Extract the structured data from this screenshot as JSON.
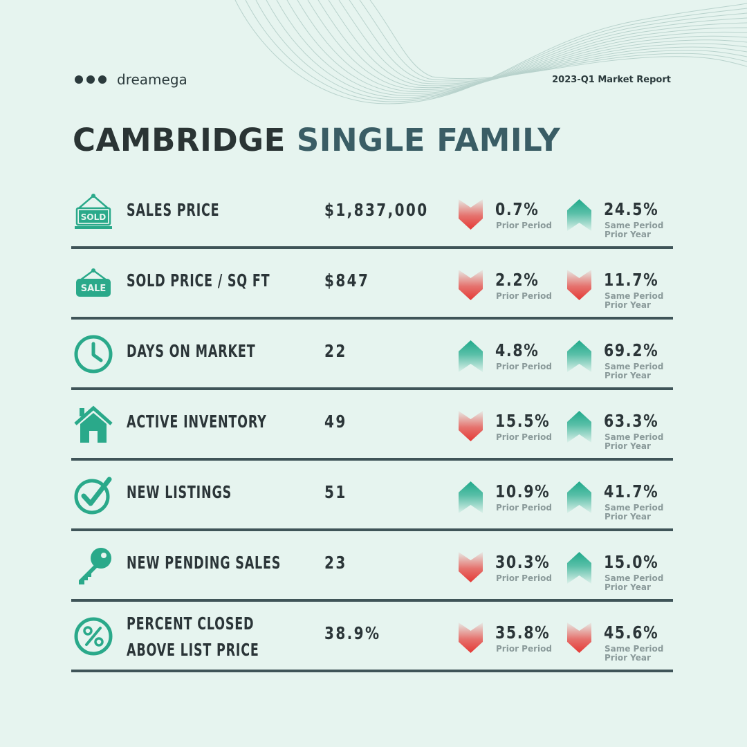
{
  "brand": "dreamega",
  "report_label": "2023-Q1 Market Report",
  "title": {
    "city": "CAMBRIDGE",
    "segment": "SINGLE FAMILY"
  },
  "colors": {
    "up": "#1fa98a",
    "down": "#e53935",
    "text": "#2b3538",
    "rule": "#3f5458",
    "background": "#e6f4ef"
  },
  "metrics": [
    {
      "icon": "sold-sign-icon",
      "label": "SALES PRICE",
      "value": "$1,837,000",
      "prior": {
        "direction": "down",
        "pct": "0.7%",
        "caption": "Prior Period"
      },
      "year": {
        "direction": "up",
        "pct": "24.5%",
        "caption1": "Same Period",
        "caption2": "Prior Year"
      }
    },
    {
      "icon": "sale-tag-icon",
      "label": "SOLD PRICE / SQ FT",
      "value": "$847",
      "prior": {
        "direction": "down",
        "pct": "2.2%",
        "caption": "Prior Period"
      },
      "year": {
        "direction": "down",
        "pct": "11.7%",
        "caption1": "Same Period",
        "caption2": "Prior Year"
      }
    },
    {
      "icon": "clock-icon",
      "label": "DAYS ON MARKET",
      "value": "22",
      "prior": {
        "direction": "up",
        "pct": "4.8%",
        "caption": "Prior Period"
      },
      "year": {
        "direction": "up",
        "pct": "69.2%",
        "caption1": "Same Period",
        "caption2": "Prior Year"
      }
    },
    {
      "icon": "house-icon",
      "label": "ACTIVE INVENTORY",
      "value": "49",
      "prior": {
        "direction": "down",
        "pct": "15.5%",
        "caption": "Prior Period"
      },
      "year": {
        "direction": "up",
        "pct": "63.3%",
        "caption1": "Same Period",
        "caption2": "Prior Year"
      }
    },
    {
      "icon": "checkmark-circle-icon",
      "label": "NEW LISTINGS",
      "value": "51",
      "prior": {
        "direction": "up",
        "pct": "10.9%",
        "caption": "Prior Period"
      },
      "year": {
        "direction": "up",
        "pct": "41.7%",
        "caption1": "Same Period",
        "caption2": "Prior Year"
      }
    },
    {
      "icon": "key-icon",
      "label": "NEW PENDING SALES",
      "value": "23",
      "prior": {
        "direction": "down",
        "pct": "30.3%",
        "caption": "Prior Period"
      },
      "year": {
        "direction": "up",
        "pct": "15.0%",
        "caption1": "Same Period",
        "caption2": "Prior Year"
      }
    },
    {
      "icon": "percent-circle-icon",
      "label_line1": "PERCENT CLOSED",
      "label_line2": "ABOVE LIST PRICE",
      "value": "38.9%",
      "prior": {
        "direction": "down",
        "pct": "35.8%",
        "caption": "Prior Period"
      },
      "year": {
        "direction": "down",
        "pct": "45.6%",
        "caption1": "Same Period",
        "caption2": "Prior Year"
      }
    }
  ]
}
